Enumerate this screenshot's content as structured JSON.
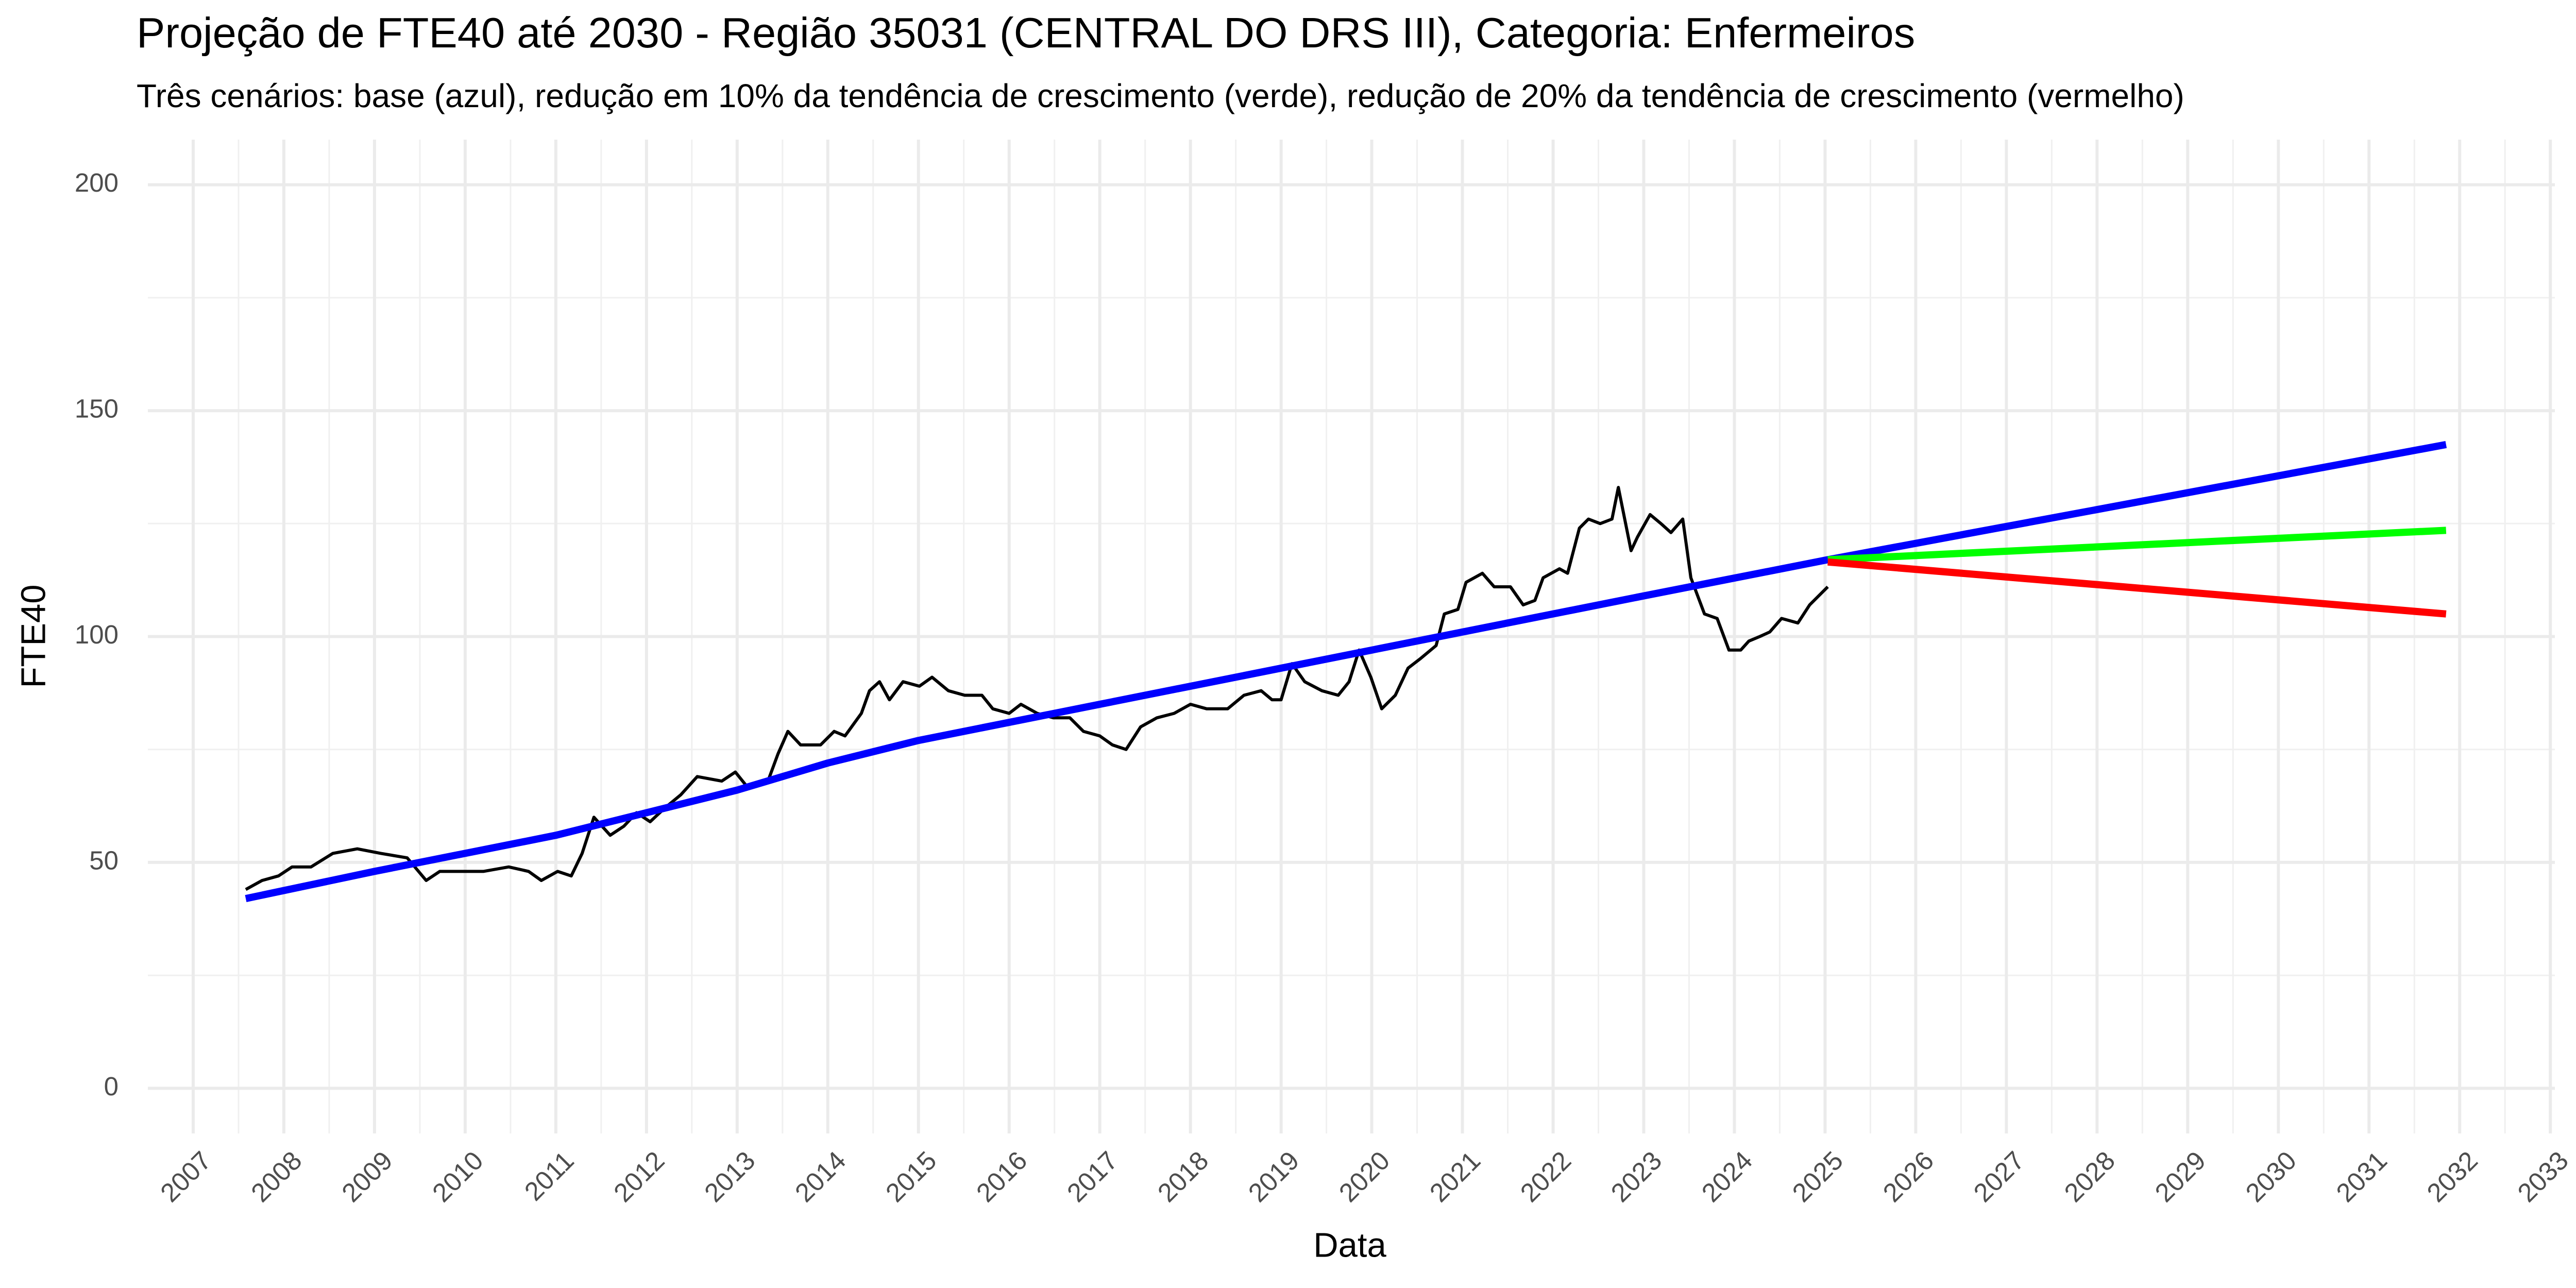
{
  "chart_data": {
    "type": "line",
    "title": "Projeção de FTE40 até 2030 - Região 35031 (CENTRAL DO DRS III), Categoria: Enfermeiros",
    "subtitle": "Três cenários: base (azul), redução em 10% da tendência de crescimento (verde), redução de 20% da tendência de crescimento (vermelho)",
    "x_label": "Data",
    "y_label": "FTE40",
    "xlim": [
      2006.5,
      2033.05
    ],
    "ylim": [
      -10,
      210
    ],
    "xticks": [
      2007,
      2008,
      2009,
      2010,
      2011,
      2012,
      2013,
      2014,
      2015,
      2016,
      2017,
      2018,
      2019,
      2020,
      2021,
      2022,
      2023,
      2024,
      2025,
      2026,
      2027,
      2028,
      2029,
      2030,
      2031,
      2032,
      2033
    ],
    "yticks": [
      0,
      50,
      100,
      150,
      200
    ],
    "grid": true,
    "series": [
      {
        "color": "#000000",
        "width": 6,
        "x": [
          2007.58,
          2007.76,
          2007.94,
          2008.09,
          2008.3,
          2008.54,
          2008.81,
          2009.07,
          2009.36,
          2009.57,
          2009.72,
          2009.93,
          2010.2,
          2010.48,
          2010.7,
          2010.84,
          2011.02,
          2011.17,
          2011.29,
          2011.42,
          2011.6,
          2011.75,
          2011.89,
          2012.04,
          2012.2,
          2012.38,
          2012.56,
          2012.83,
          2012.98,
          2013.1,
          2013.34,
          2013.45,
          2013.56,
          2013.7,
          2013.92,
          2014.07,
          2014.19,
          2014.37,
          2014.46,
          2014.57,
          2014.68,
          2014.83,
          2015.01,
          2015.15,
          2015.33,
          2015.51,
          2015.7,
          2015.82,
          2016.0,
          2016.13,
          2016.31,
          2016.49,
          2016.67,
          2016.82,
          2017.0,
          2017.14,
          2017.29,
          2017.45,
          2017.63,
          2017.82,
          2018.0,
          2018.18,
          2018.41,
          2018.59,
          2018.78,
          2018.9,
          2019.0,
          2019.12,
          2019.26,
          2019.45,
          2019.63,
          2019.75,
          2019.86,
          2019.99,
          2020.11,
          2020.26,
          2020.4,
          2020.53,
          2020.71,
          2020.8,
          2020.95,
          2021.04,
          2021.22,
          2021.35,
          2021.53,
          2021.67,
          2021.8,
          2021.89,
          2022.07,
          2022.16,
          2022.29,
          2022.39,
          2022.52,
          2022.65,
          2022.72,
          2022.86,
          2022.93,
          2023.07,
          2023.19,
          2023.3,
          2023.43,
          2023.52,
          2023.67,
          2023.81,
          2023.94,
          2024.07,
          2024.16,
          2024.28,
          2024.39,
          2024.52,
          2024.7,
          2024.83,
          2025.03
        ],
        "values": [
          44,
          46,
          47,
          49,
          49,
          52,
          53,
          52,
          51,
          46,
          48,
          48,
          48,
          49,
          48,
          46,
          48,
          47,
          52,
          60,
          56,
          58,
          61,
          59,
          62,
          65,
          69,
          68,
          70,
          67,
          68,
          74,
          79,
          76,
          76,
          79,
          78,
          83,
          88,
          90,
          86,
          90,
          89,
          91,
          88,
          87,
          87,
          84,
          83,
          85,
          83,
          82,
          82,
          79,
          78,
          76,
          75,
          80,
          82,
          83,
          85,
          84,
          84,
          87,
          88,
          86,
          86,
          94,
          90,
          88,
          87,
          90,
          97,
          91,
          84,
          87,
          93,
          95,
          98,
          105,
          106,
          112,
          114,
          111,
          111,
          107,
          108,
          113,
          115,
          114,
          124,
          126,
          125,
          126,
          133,
          119,
          122,
          127,
          125,
          123,
          126,
          113,
          105,
          104,
          97,
          97,
          99,
          100,
          101,
          104,
          103,
          107,
          111
        ]
      },
      {
        "color": "#0000ff",
        "width": 14,
        "x": [
          2007.58,
          2009,
          2011,
          2013,
          2014,
          2015,
          2017,
          2019,
          2021,
          2023,
          2025.03,
          2031.85
        ],
        "values": [
          42,
          48,
          56,
          66,
          72,
          77,
          85,
          93,
          101,
          109,
          117,
          142.5
        ]
      },
      {
        "color": "#00ff00",
        "width": 14,
        "x": [
          2025.03,
          2031.85
        ],
        "values": [
          117,
          123.5
        ]
      },
      {
        "color": "#ff0000",
        "width": 14,
        "x": [
          2025.03,
          2031.85
        ],
        "values": [
          116.5,
          105
        ]
      }
    ]
  }
}
